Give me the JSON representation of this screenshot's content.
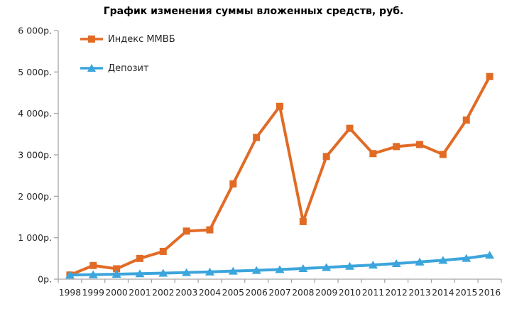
{
  "chart_data": {
    "type": "line",
    "title": "График изменения суммы вложенных средств, руб.",
    "xlabel": "",
    "ylabel": "",
    "x": [
      "1998",
      "1999",
      "2000",
      "2001",
      "2002",
      "2003",
      "2004",
      "2005",
      "2006",
      "2007",
      "2008",
      "2009",
      "2010",
      "2011",
      "2012",
      "2013",
      "2014",
      "2015",
      "2016"
    ],
    "series": [
      {
        "id": "mmvb",
        "name": "Индекс ММВБ",
        "color": "#E16B25",
        "marker": "square",
        "values": [
          100,
          330,
          250,
          500,
          670,
          1160,
          1190,
          2300,
          3420,
          4170,
          1390,
          2960,
          3640,
          3030,
          3200,
          3250,
          3010,
          3840,
          4890
        ]
      },
      {
        "id": "deposit",
        "name": "Депозит",
        "color": "#3BA5DC",
        "marker": "triangle",
        "values": [
          100,
          110,
          120,
          132,
          146,
          160,
          176,
          194,
          213,
          234,
          258,
          284,
          312,
          343,
          378,
          415,
          457,
          503,
          580
        ]
      }
    ],
    "ylim": [
      0,
      6000
    ],
    "ytick_step": 1000,
    "ytick_labels": [
      "0р.",
      "1 000р.",
      "2 000р.",
      "3 000р.",
      "4 000р.",
      "5 000р.",
      "6 000р."
    ],
    "grid": false,
    "legend_position": "top-left",
    "axis_color": "#A6A6A6",
    "tick_text_color": "#262626"
  }
}
